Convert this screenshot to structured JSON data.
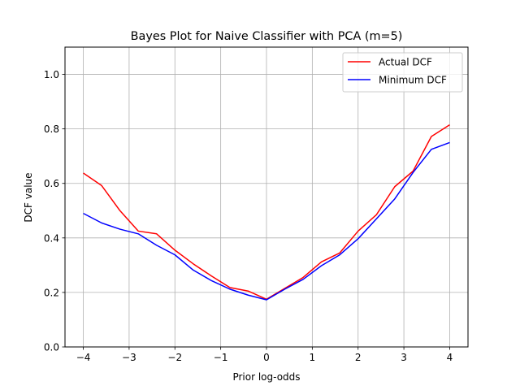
{
  "chart_data": {
    "type": "line",
    "title": "Bayes  Plot for Naive Classifier with PCA (m=5)",
    "xlabel": "Prior log-odds",
    "ylabel": "DCF value",
    "xlim": [
      -4.4,
      4.4
    ],
    "ylim": [
      0.0,
      1.1
    ],
    "xticks": [
      -4,
      -3,
      -2,
      -1,
      0,
      1,
      2,
      3,
      4
    ],
    "xtick_labels": [
      "−4",
      "−3",
      "−2",
      "−1",
      "0",
      "1",
      "2",
      "3",
      "4"
    ],
    "yticks": [
      0.0,
      0.2,
      0.4,
      0.6,
      0.8,
      1.0
    ],
    "ytick_labels": [
      "0.0",
      "0.2",
      "0.4",
      "0.6",
      "0.8",
      "1.0"
    ],
    "grid": true,
    "legend_position": "top-right",
    "x": [
      -4.0,
      -3.6,
      -3.2,
      -2.8,
      -2.4,
      -2.0,
      -1.6,
      -1.2,
      -0.8,
      -0.4,
      0.0,
      0.4,
      0.8,
      1.2,
      1.6,
      2.0,
      2.4,
      2.8,
      3.2,
      3.6,
      4.0
    ],
    "series": [
      {
        "name": "Actual DCF",
        "color": "#ff0000",
        "values": [
          0.638,
          0.592,
          0.5,
          0.425,
          0.415,
          0.355,
          0.305,
          0.26,
          0.218,
          0.205,
          0.175,
          0.215,
          0.255,
          0.312,
          0.345,
          0.425,
          0.485,
          0.588,
          0.645,
          0.772,
          0.815
        ]
      },
      {
        "name": "Minimum DCF",
        "color": "#0000ff",
        "values": [
          0.49,
          0.455,
          0.432,
          0.415,
          0.373,
          0.338,
          0.282,
          0.243,
          0.212,
          0.19,
          0.173,
          0.212,
          0.248,
          0.298,
          0.338,
          0.397,
          0.47,
          0.543,
          0.64,
          0.725,
          0.75
        ]
      }
    ]
  }
}
